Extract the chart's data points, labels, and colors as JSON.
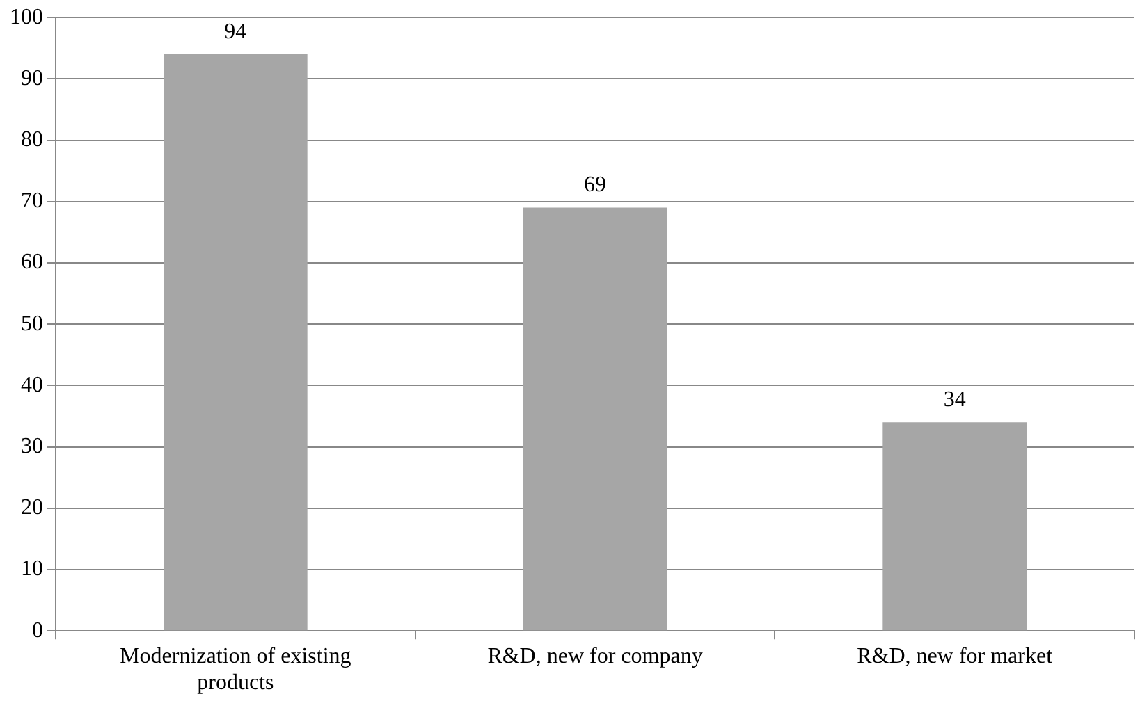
{
  "chart_data": {
    "type": "bar",
    "categories": [
      "Modernization of existing products",
      "R&D, new for company",
      "R&D, new for market"
    ],
    "values": [
      94,
      69,
      34
    ],
    "color": "#a6a6a6",
    "ylim": [
      0,
      100
    ],
    "yticks": [
      0,
      10,
      20,
      30,
      40,
      50,
      60,
      70,
      80,
      90,
      100
    ],
    "grid": "y",
    "data_labels": true
  }
}
